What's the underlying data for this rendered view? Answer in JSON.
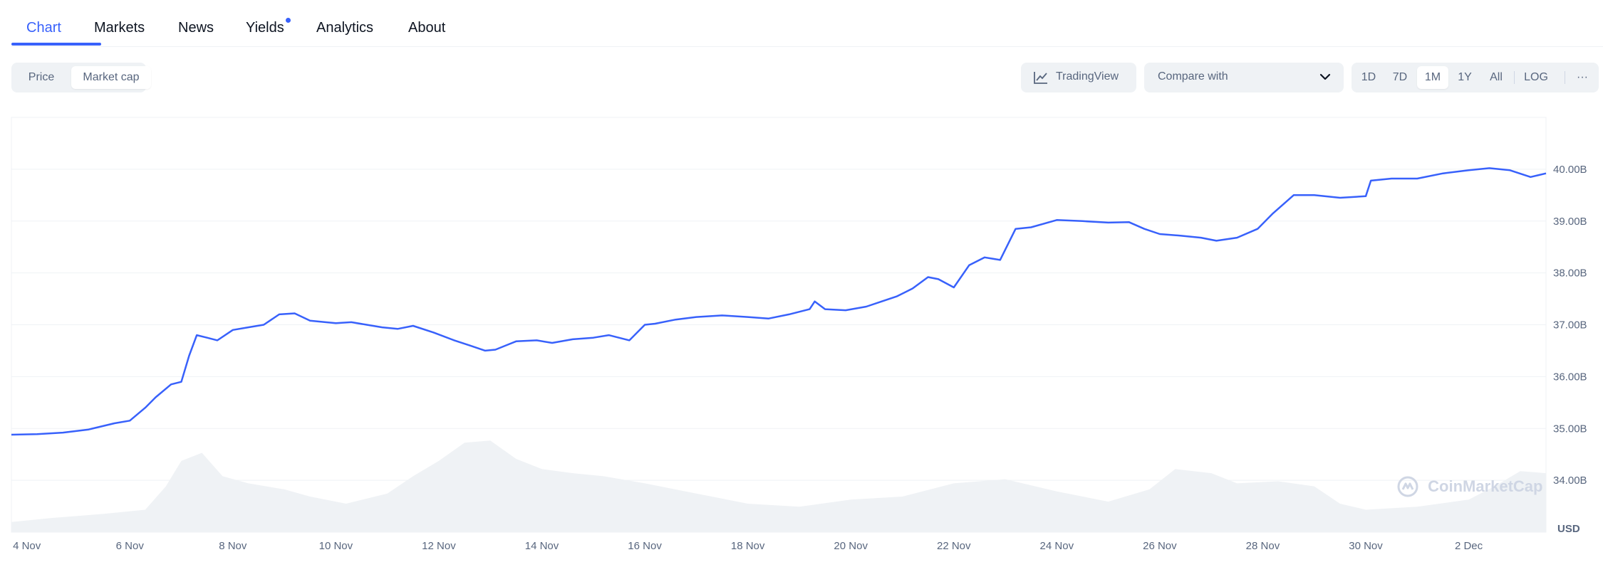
{
  "tabs": [
    {
      "label": "Chart",
      "active": true
    },
    {
      "label": "Markets"
    },
    {
      "label": "News"
    },
    {
      "label": "Yields",
      "has_dot": true
    },
    {
      "label": "Analytics"
    },
    {
      "label": "About"
    }
  ],
  "toolbar": {
    "view_toggle": {
      "price": "Price",
      "market_cap": "Market cap",
      "selected": "Market cap"
    },
    "tradingview_label": "TradingView",
    "tradingview_icon": "line-chart-icon",
    "compare_label": "Compare with",
    "compare_icon": "chevron-down-icon",
    "ranges": [
      "1D",
      "7D",
      "1M",
      "1Y",
      "All"
    ],
    "selected_range": "1M",
    "log_label": "LOG",
    "more_label": "···"
  },
  "watermark": "CoinMarketCap",
  "colors": {
    "line": "#3861fb",
    "accent": "#3861fb",
    "volume": "#eff2f5",
    "grid": "#eff2f5"
  },
  "chart_data": {
    "type": "line",
    "title": "",
    "currency": "USD",
    "grid": true,
    "ylim": [
      33.0,
      41.0
    ],
    "y_ticks": [
      "40.00B",
      "39.00B",
      "38.00B",
      "37.00B",
      "36.00B",
      "35.00B",
      "34.00B"
    ],
    "y_tick_values": [
      40,
      39,
      38,
      37,
      36,
      35,
      34
    ],
    "xlim": [
      3.7,
      33.5
    ],
    "x_ticks": [
      "4 Nov",
      "6 Nov",
      "8 Nov",
      "10 Nov",
      "12 Nov",
      "14 Nov",
      "16 Nov",
      "18 Nov",
      "20 Nov",
      "22 Nov",
      "24 Nov",
      "26 Nov",
      "28 Nov",
      "30 Nov",
      "2 Dec"
    ],
    "x_tick_values": [
      4,
      6,
      8,
      10,
      12,
      14,
      16,
      18,
      20,
      22,
      24,
      26,
      28,
      30,
      32
    ],
    "series": [
      {
        "unit": "B USD",
        "x": [
          3.7,
          4.2,
          4.7,
          5.2,
          5.7,
          6.0,
          6.3,
          6.5,
          6.8,
          7.0,
          7.15,
          7.3,
          7.5,
          7.7,
          8.0,
          8.3,
          8.6,
          8.9,
          9.2,
          9.5,
          9.8,
          10.0,
          10.3,
          10.6,
          10.9,
          11.2,
          11.5,
          11.9,
          12.3,
          12.6,
          12.9,
          13.1,
          13.3,
          13.5,
          13.9,
          14.2,
          14.6,
          15.0,
          15.3,
          15.7,
          16.0,
          16.2,
          16.6,
          17.0,
          17.5,
          18.0,
          18.4,
          18.8,
          19.2,
          19.3,
          19.5,
          19.9,
          20.3,
          20.6,
          20.9,
          21.2,
          21.5,
          21.7,
          22.0,
          22.3,
          22.6,
          22.9,
          23.2,
          23.5,
          24.0,
          24.5,
          25.0,
          25.4,
          25.7,
          26.0,
          26.4,
          26.8,
          27.1,
          27.5,
          27.9,
          28.2,
          28.6,
          29.0,
          29.5,
          30.0,
          30.1,
          30.5,
          31.0,
          31.5,
          32.0,
          32.4,
          32.8,
          33.2,
          33.5
        ],
        "y": [
          34.88,
          34.89,
          34.92,
          34.98,
          35.1,
          35.15,
          35.4,
          35.6,
          35.85,
          35.9,
          36.4,
          36.8,
          36.75,
          36.7,
          36.9,
          36.95,
          37.0,
          37.2,
          37.22,
          37.08,
          37.05,
          37.03,
          37.05,
          37.0,
          36.95,
          36.92,
          36.98,
          36.85,
          36.7,
          36.6,
          36.5,
          36.52,
          36.6,
          36.68,
          36.7,
          36.65,
          36.72,
          36.75,
          36.8,
          36.7,
          37.0,
          37.02,
          37.1,
          37.15,
          37.18,
          37.15,
          37.12,
          37.2,
          37.3,
          37.45,
          37.3,
          37.28,
          37.35,
          37.45,
          37.55,
          37.7,
          37.92,
          37.88,
          37.72,
          38.15,
          38.3,
          38.25,
          38.85,
          38.88,
          39.02,
          39.0,
          38.97,
          38.98,
          38.85,
          38.75,
          38.72,
          38.68,
          38.62,
          38.68,
          38.85,
          39.15,
          39.5,
          39.5,
          39.45,
          39.48,
          39.78,
          39.82,
          39.82,
          39.92,
          39.98,
          40.02,
          39.98,
          39.85,
          39.92
        ]
      },
      {
        "unit": "volume (relative 0-1)",
        "x": [
          3.7,
          4.5,
          5.5,
          6.3,
          6.7,
          7.0,
          7.4,
          7.8,
          8.3,
          9.0,
          9.5,
          10.2,
          11.0,
          11.5,
          12.0,
          12.5,
          13.0,
          13.5,
          14.0,
          14.6,
          15.2,
          16.0,
          17.0,
          18.0,
          19.0,
          20.0,
          21.0,
          22.0,
          23.0,
          24.0,
          25.0,
          25.8,
          26.3,
          27.0,
          27.5,
          28.3,
          29.0,
          29.5,
          30.0,
          31.0,
          32.0,
          32.5,
          33.0,
          33.5
        ],
        "y": [
          0.1,
          0.14,
          0.18,
          0.22,
          0.45,
          0.7,
          0.78,
          0.55,
          0.48,
          0.42,
          0.35,
          0.28,
          0.38,
          0.55,
          0.7,
          0.88,
          0.9,
          0.72,
          0.62,
          0.58,
          0.55,
          0.48,
          0.38,
          0.28,
          0.25,
          0.32,
          0.35,
          0.48,
          0.52,
          0.4,
          0.3,
          0.42,
          0.62,
          0.58,
          0.48,
          0.5,
          0.45,
          0.28,
          0.22,
          0.25,
          0.32,
          0.45,
          0.6,
          0.58
        ]
      }
    ]
  }
}
